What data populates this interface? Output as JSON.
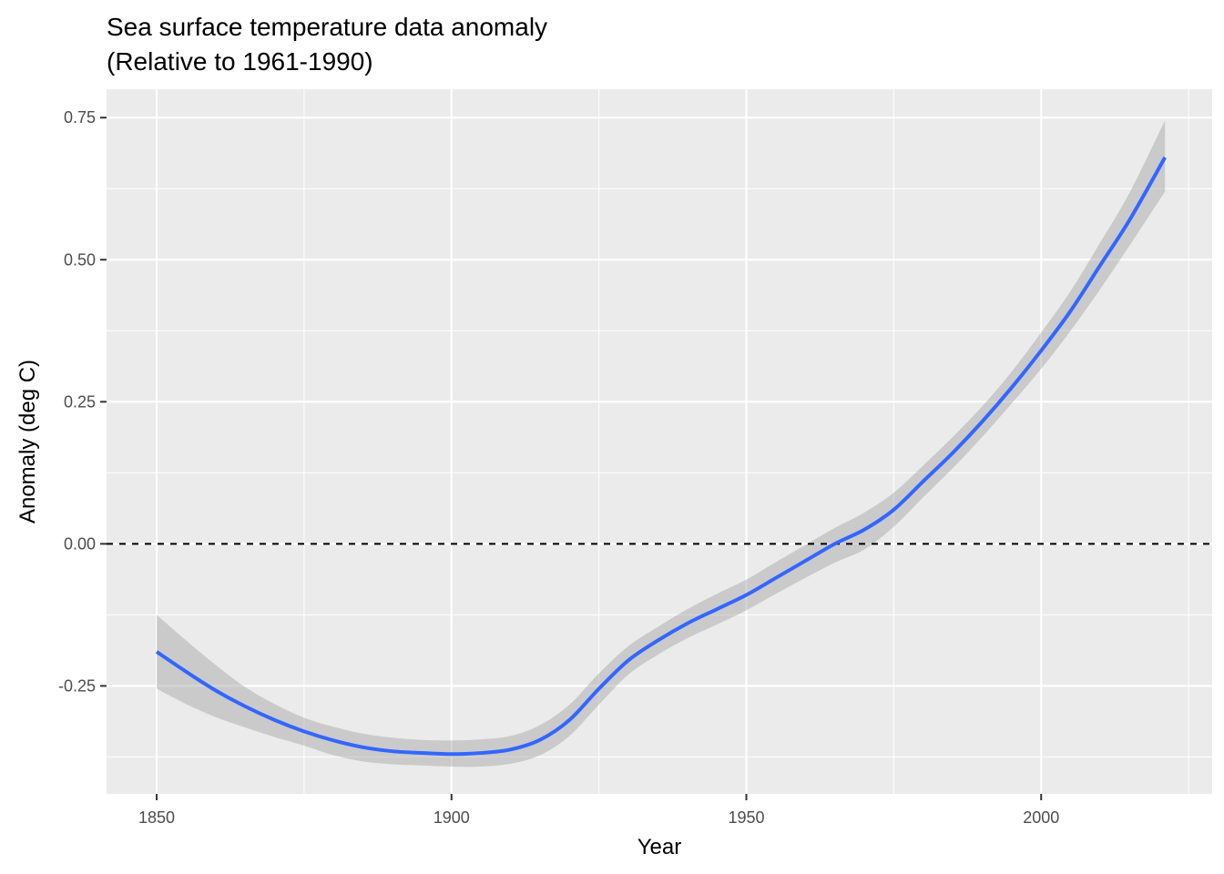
{
  "chart_data": {
    "type": "line",
    "title": "Sea surface temperature data anomaly",
    "subtitle": "(Relative to 1961-1990)",
    "xlabel": "Year",
    "ylabel": "Anomaly (deg C)",
    "xlim": [
      1841.5,
      2029
    ],
    "ylim": [
      -0.44,
      0.8
    ],
    "x_ticks": [
      1850,
      1900,
      1950,
      2000
    ],
    "x_tick_labels": [
      "1850",
      "1900",
      "1950",
      "2000"
    ],
    "y_ticks": [
      -0.25,
      0,
      0.25,
      0.5,
      0.75
    ],
    "y_tick_labels": [
      "-0.25",
      "0.00",
      "0.25",
      "0.50",
      "0.75"
    ],
    "grid": true,
    "reference_line": {
      "y": 0,
      "style": "dashed",
      "color": "#000000"
    },
    "series": [
      {
        "color": "#3366FF",
        "x": [
          1850,
          1855,
          1860,
          1865,
          1870,
          1875,
          1880,
          1885,
          1890,
          1895,
          1900,
          1905,
          1910,
          1915,
          1920,
          1925,
          1930,
          1935,
          1940,
          1945,
          1950,
          1955,
          1960,
          1965,
          1970,
          1975,
          1980,
          1985,
          1990,
          1995,
          2000,
          2005,
          2010,
          2015,
          2021
        ],
        "y": [
          -0.19,
          -0.225,
          -0.258,
          -0.286,
          -0.31,
          -0.33,
          -0.346,
          -0.358,
          -0.365,
          -0.368,
          -0.37,
          -0.368,
          -0.362,
          -0.345,
          -0.31,
          -0.255,
          -0.205,
          -0.17,
          -0.14,
          -0.115,
          -0.09,
          -0.06,
          -0.03,
          0.0,
          0.025,
          0.06,
          0.11,
          0.16,
          0.215,
          0.275,
          0.34,
          0.41,
          0.49,
          0.57,
          0.68
        ],
        "lower": [
          -0.255,
          -0.282,
          -0.305,
          -0.323,
          -0.34,
          -0.355,
          -0.372,
          -0.383,
          -0.388,
          -0.39,
          -0.392,
          -0.392,
          -0.387,
          -0.372,
          -0.338,
          -0.283,
          -0.23,
          -0.195,
          -0.166,
          -0.142,
          -0.117,
          -0.088,
          -0.06,
          -0.033,
          -0.01,
          0.03,
          0.082,
          0.133,
          0.188,
          0.247,
          0.308,
          0.375,
          0.448,
          0.525,
          0.62
        ],
        "upper": [
          -0.125,
          -0.17,
          -0.213,
          -0.252,
          -0.282,
          -0.306,
          -0.322,
          -0.334,
          -0.341,
          -0.345,
          -0.346,
          -0.344,
          -0.338,
          -0.319,
          -0.283,
          -0.228,
          -0.18,
          -0.146,
          -0.115,
          -0.088,
          -0.063,
          -0.032,
          -0.002,
          0.028,
          0.055,
          0.09,
          0.138,
          0.188,
          0.242,
          0.303,
          0.372,
          0.445,
          0.53,
          0.618,
          0.745
        ]
      }
    ]
  }
}
